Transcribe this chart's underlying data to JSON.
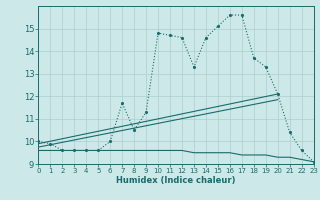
{
  "xlabel": "Humidex (Indice chaleur)",
  "xlim": [
    0,
    23
  ],
  "ylim": [
    9,
    16
  ],
  "yticks": [
    9,
    10,
    11,
    12,
    13,
    14,
    15
  ],
  "xticks": [
    0,
    1,
    2,
    3,
    4,
    5,
    6,
    7,
    8,
    9,
    10,
    11,
    12,
    13,
    14,
    15,
    16,
    17,
    18,
    19,
    20,
    21,
    22,
    23
  ],
  "bg_color": "#cce8e8",
  "grid_color": "#aacfcf",
  "line_color": "#1a6b6b",
  "curve_dotted_x": [
    0,
    1,
    2,
    3,
    4,
    5,
    6,
    7,
    8,
    9,
    10,
    11,
    12,
    13,
    14,
    15,
    16,
    17,
    18,
    19,
    20,
    21,
    22,
    23
  ],
  "curve_dotted_y": [
    10.0,
    9.9,
    9.6,
    9.6,
    9.6,
    9.6,
    10.0,
    11.7,
    10.5,
    11.3,
    14.8,
    14.7,
    14.6,
    13.3,
    14.6,
    15.1,
    15.6,
    15.6,
    13.7,
    13.3,
    12.1,
    10.4,
    9.6,
    9.1
  ],
  "curve_flat_x": [
    0,
    1,
    2,
    3,
    4,
    5,
    6,
    7,
    8,
    9,
    10,
    11,
    12,
    13,
    14,
    15,
    16,
    17,
    18,
    19,
    20,
    21,
    22,
    23
  ],
  "curve_flat_y": [
    9.6,
    9.6,
    9.6,
    9.6,
    9.6,
    9.6,
    9.6,
    9.6,
    9.6,
    9.6,
    9.6,
    9.6,
    9.6,
    9.5,
    9.5,
    9.5,
    9.5,
    9.4,
    9.4,
    9.4,
    9.3,
    9.3,
    9.2,
    9.1
  ],
  "line1_x": [
    0,
    20
  ],
  "line1_y": [
    9.9,
    12.1
  ],
  "line2_x": [
    0,
    20
  ],
  "line2_y": [
    9.75,
    11.85
  ]
}
